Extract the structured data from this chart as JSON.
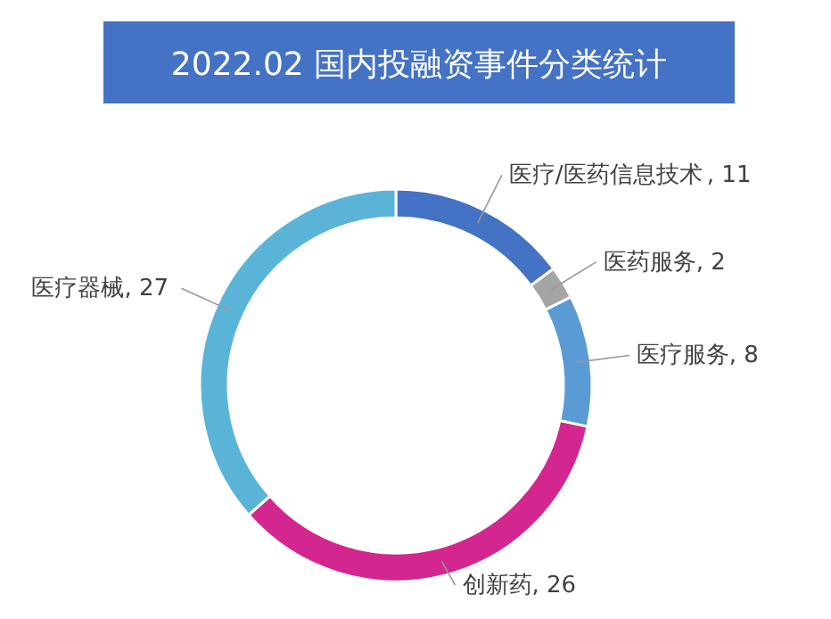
{
  "chart_data": {
    "type": "donut",
    "title": "2022.02 国内投融资事件分类统计",
    "categories": [
      "医疗/医药信息技术",
      "医药服务",
      "医疗服务",
      "创新药",
      "医疗器械"
    ],
    "values": [
      11,
      2,
      8,
      26,
      27
    ],
    "colors": [
      "#4472c4",
      "#a5a5a5",
      "#5b9bd5",
      "#d4268f",
      "#5ab4d8"
    ],
    "value_labels": [
      ", 11",
      ", 2",
      ", 8",
      ", 26",
      ", 27"
    ]
  }
}
